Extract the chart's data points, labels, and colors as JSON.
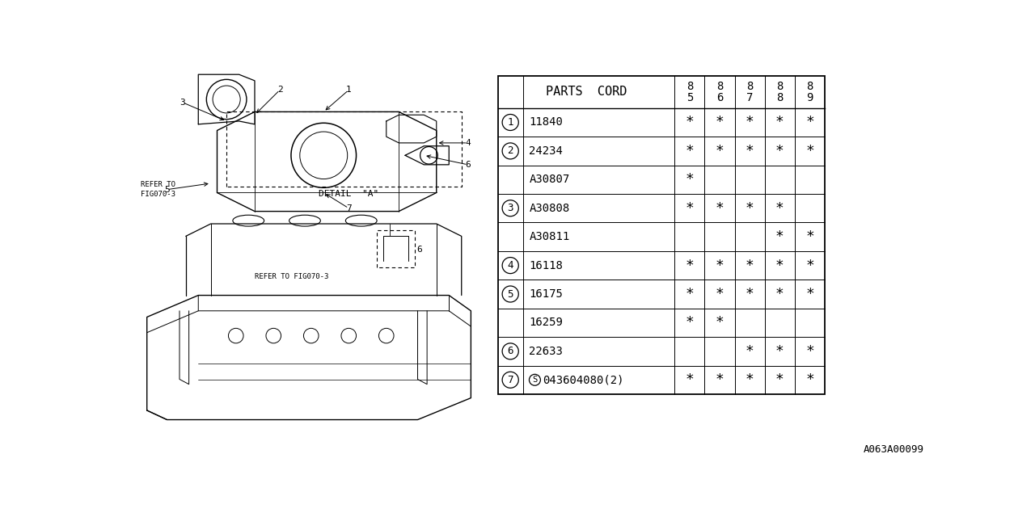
{
  "bg_color": "#ffffff",
  "line_color": "#000000",
  "text_color": "#000000",
  "col_header": "PARTS  CORD",
  "year_cols": [
    [
      "8",
      "5"
    ],
    [
      "8",
      "6"
    ],
    [
      "8",
      "7"
    ],
    [
      "8",
      "8"
    ],
    [
      "8",
      "9"
    ]
  ],
  "rows": [
    {
      "num": "1",
      "part": "11840",
      "85": "*",
      "86": "*",
      "87": "*",
      "88": "*",
      "89": "*"
    },
    {
      "num": "2",
      "part": "24234",
      "85": "*",
      "86": "*",
      "87": "*",
      "88": "*",
      "89": "*"
    },
    {
      "num": "",
      "part": "A30807",
      "85": "*",
      "86": "",
      "87": "",
      "88": "",
      "89": ""
    },
    {
      "num": "3",
      "part": "A30808",
      "85": "*",
      "86": "*",
      "87": "*",
      "88": "*",
      "89": ""
    },
    {
      "num": "",
      "part": "A30811",
      "85": "",
      "86": "",
      "87": "",
      "88": "*",
      "89": "*"
    },
    {
      "num": "4",
      "part": "16118",
      "85": "*",
      "86": "*",
      "87": "*",
      "88": "*",
      "89": "*"
    },
    {
      "num": "5",
      "part": "16175",
      "85": "*",
      "86": "*",
      "87": "*",
      "88": "*",
      "89": "*"
    },
    {
      "num": "",
      "part": "16259",
      "85": "*",
      "86": "*",
      "87": "",
      "88": "",
      "89": ""
    },
    {
      "num": "6",
      "part": "22633",
      "85": "",
      "86": "",
      "87": "*",
      "88": "*",
      "89": "*"
    },
    {
      "num": "7",
      "part": "S043604080(2)",
      "85": "*",
      "86": "*",
      "87": "*",
      "88": "*",
      "89": "*"
    }
  ],
  "footnote": "A063A00099"
}
